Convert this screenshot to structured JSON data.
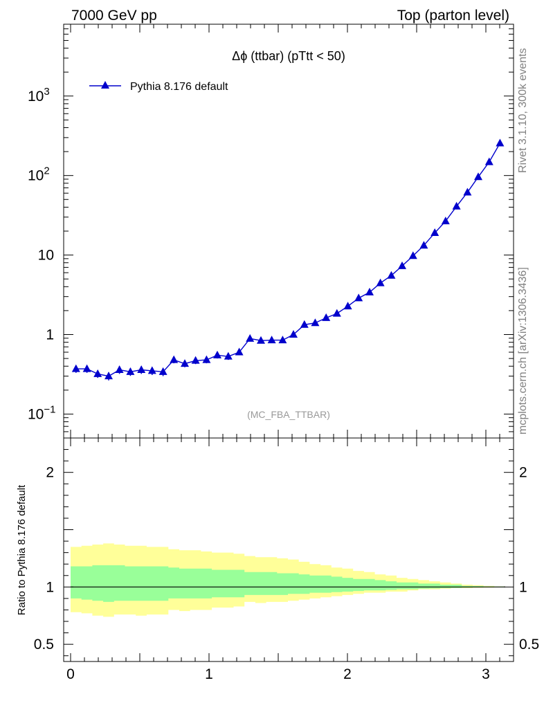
{
  "header": {
    "left": "7000 GeV pp",
    "right": "Top (parton level)"
  },
  "side_labels": {
    "rivet": "Rivet 3.1.10,  300k events",
    "mcplots": "mcplots.cern.ch [arXiv:1306.3436]"
  },
  "chart_data": [
    {
      "type": "line",
      "title": "Δϕ (ttbar) (pTtt < 50)",
      "watermark": "(MC_FBA_TTBAR)",
      "yscale": "log",
      "xlim": [
        -0.05,
        3.2
      ],
      "ylim": [
        0.05,
        8000
      ],
      "yticks": [
        {
          "v": 0.1,
          "base": "10",
          "exp": "−1"
        },
        {
          "v": 1,
          "base": "1",
          "exp": ""
        },
        {
          "v": 10,
          "base": "10",
          "exp": ""
        },
        {
          "v": 100,
          "base": "10",
          "exp": "2"
        },
        {
          "v": 1000,
          "base": "10",
          "exp": "3"
        }
      ],
      "legend": {
        "position": "top-left"
      },
      "series": [
        {
          "name": "Pythia 8.176 default",
          "color": "#0000cc",
          "marker": "triangle",
          "x": [
            0.039,
            0.118,
            0.196,
            0.275,
            0.353,
            0.432,
            0.511,
            0.589,
            0.668,
            0.746,
            0.825,
            0.903,
            0.982,
            1.06,
            1.139,
            1.218,
            1.296,
            1.375,
            1.453,
            1.532,
            1.61,
            1.689,
            1.767,
            1.846,
            1.924,
            2.003,
            2.081,
            2.16,
            2.238,
            2.317,
            2.395,
            2.474,
            2.552,
            2.631,
            2.709,
            2.788,
            2.867,
            2.945,
            3.024,
            3.102
          ],
          "y": [
            0.37,
            0.37,
            0.32,
            0.3,
            0.36,
            0.34,
            0.36,
            0.35,
            0.34,
            0.48,
            0.43,
            0.47,
            0.48,
            0.55,
            0.53,
            0.6,
            0.89,
            0.84,
            0.85,
            0.85,
            1.0,
            1.33,
            1.4,
            1.62,
            1.84,
            2.27,
            2.87,
            3.4,
            4.44,
            5.52,
            7.29,
            9.77,
            13.2,
            19.0,
            26.7,
            40.9,
            61.5,
            96.0,
            148,
            255
          ],
          "yerr": [
            0.04,
            0.04,
            0.035,
            0.035,
            0.04,
            0.038,
            0.04,
            0.04,
            0.04,
            0.045,
            0.042,
            0.045,
            0.045,
            0.05,
            0.05,
            0.05,
            0.05,
            0.05,
            0.05,
            0.05,
            0.05,
            0.06,
            0.06,
            0.07,
            0.07,
            0.08,
            0.09,
            0.1,
            0.12,
            0.14,
            0.16,
            0.2,
            0.25,
            0.3,
            0.4,
            0.5,
            0.7,
            0.9,
            1.2,
            1.6
          ]
        }
      ]
    },
    {
      "type": "area",
      "ylabel": "Ratio to Pythia 8.176 default",
      "xlim": [
        -0.05,
        3.2
      ],
      "ylim": [
        0.35,
        2.3
      ],
      "xticks": [
        {
          "v": 0,
          "label": "0"
        },
        {
          "v": 1,
          "label": "1"
        },
        {
          "v": 2,
          "label": "2"
        },
        {
          "v": 3,
          "label": "3"
        }
      ],
      "yticks": [
        {
          "v": 0.5,
          "label": "0.5"
        },
        {
          "v": 1,
          "label": "1"
        },
        {
          "v": 2,
          "label": "2"
        }
      ],
      "bin_edges": [
        0,
        0.0785,
        0.157,
        0.2355,
        0.314,
        0.3925,
        0.471,
        0.5495,
        0.628,
        0.7065,
        0.785,
        0.8635,
        0.942,
        1.0205,
        1.099,
        1.1775,
        1.256,
        1.3345,
        1.413,
        1.4915,
        1.57,
        1.6485,
        1.727,
        1.8055,
        1.884,
        1.9625,
        2.041,
        2.1195,
        2.198,
        2.2765,
        2.355,
        2.4335,
        2.512,
        2.5905,
        2.669,
        2.7475,
        2.826,
        2.9045,
        2.983,
        3.0615,
        3.14
      ],
      "bands": [
        {
          "name": "yellow",
          "color": "#ffff99",
          "hi": [
            1.35,
            1.36,
            1.37,
            1.38,
            1.37,
            1.36,
            1.36,
            1.35,
            1.35,
            1.33,
            1.32,
            1.32,
            1.31,
            1.3,
            1.3,
            1.29,
            1.27,
            1.26,
            1.26,
            1.25,
            1.24,
            1.22,
            1.2,
            1.19,
            1.17,
            1.16,
            1.14,
            1.13,
            1.11,
            1.1,
            1.08,
            1.07,
            1.06,
            1.05,
            1.04,
            1.03,
            1.02,
            1.015,
            1.01,
            1.005
          ],
          "lo": [
            0.78,
            0.77,
            0.75,
            0.74,
            0.76,
            0.76,
            0.75,
            0.76,
            0.76,
            0.8,
            0.79,
            0.8,
            0.8,
            0.82,
            0.82,
            0.83,
            0.87,
            0.86,
            0.87,
            0.87,
            0.88,
            0.89,
            0.9,
            0.91,
            0.92,
            0.93,
            0.94,
            0.95,
            0.95,
            0.96,
            0.96,
            0.97,
            0.98,
            0.98,
            0.985,
            0.99,
            0.99,
            0.993,
            0.995,
            0.998
          ]
        },
        {
          "name": "green",
          "color": "#99ff99",
          "hi": [
            1.18,
            1.18,
            1.19,
            1.19,
            1.19,
            1.18,
            1.18,
            1.18,
            1.18,
            1.17,
            1.16,
            1.16,
            1.16,
            1.15,
            1.15,
            1.15,
            1.13,
            1.13,
            1.13,
            1.12,
            1.12,
            1.11,
            1.1,
            1.1,
            1.09,
            1.08,
            1.07,
            1.07,
            1.06,
            1.05,
            1.04,
            1.04,
            1.03,
            1.03,
            1.02,
            1.02,
            1.01,
            1.008,
            1.005,
            1.003
          ],
          "lo": [
            0.9,
            0.89,
            0.88,
            0.87,
            0.88,
            0.88,
            0.88,
            0.88,
            0.88,
            0.9,
            0.9,
            0.9,
            0.9,
            0.91,
            0.91,
            0.91,
            0.93,
            0.93,
            0.93,
            0.93,
            0.94,
            0.94,
            0.95,
            0.95,
            0.955,
            0.96,
            0.965,
            0.97,
            0.97,
            0.975,
            0.98,
            0.98,
            0.985,
            0.987,
            0.99,
            0.992,
            0.994,
            0.996,
            0.997,
            0.998
          ]
        }
      ],
      "reference_line": 1
    }
  ]
}
